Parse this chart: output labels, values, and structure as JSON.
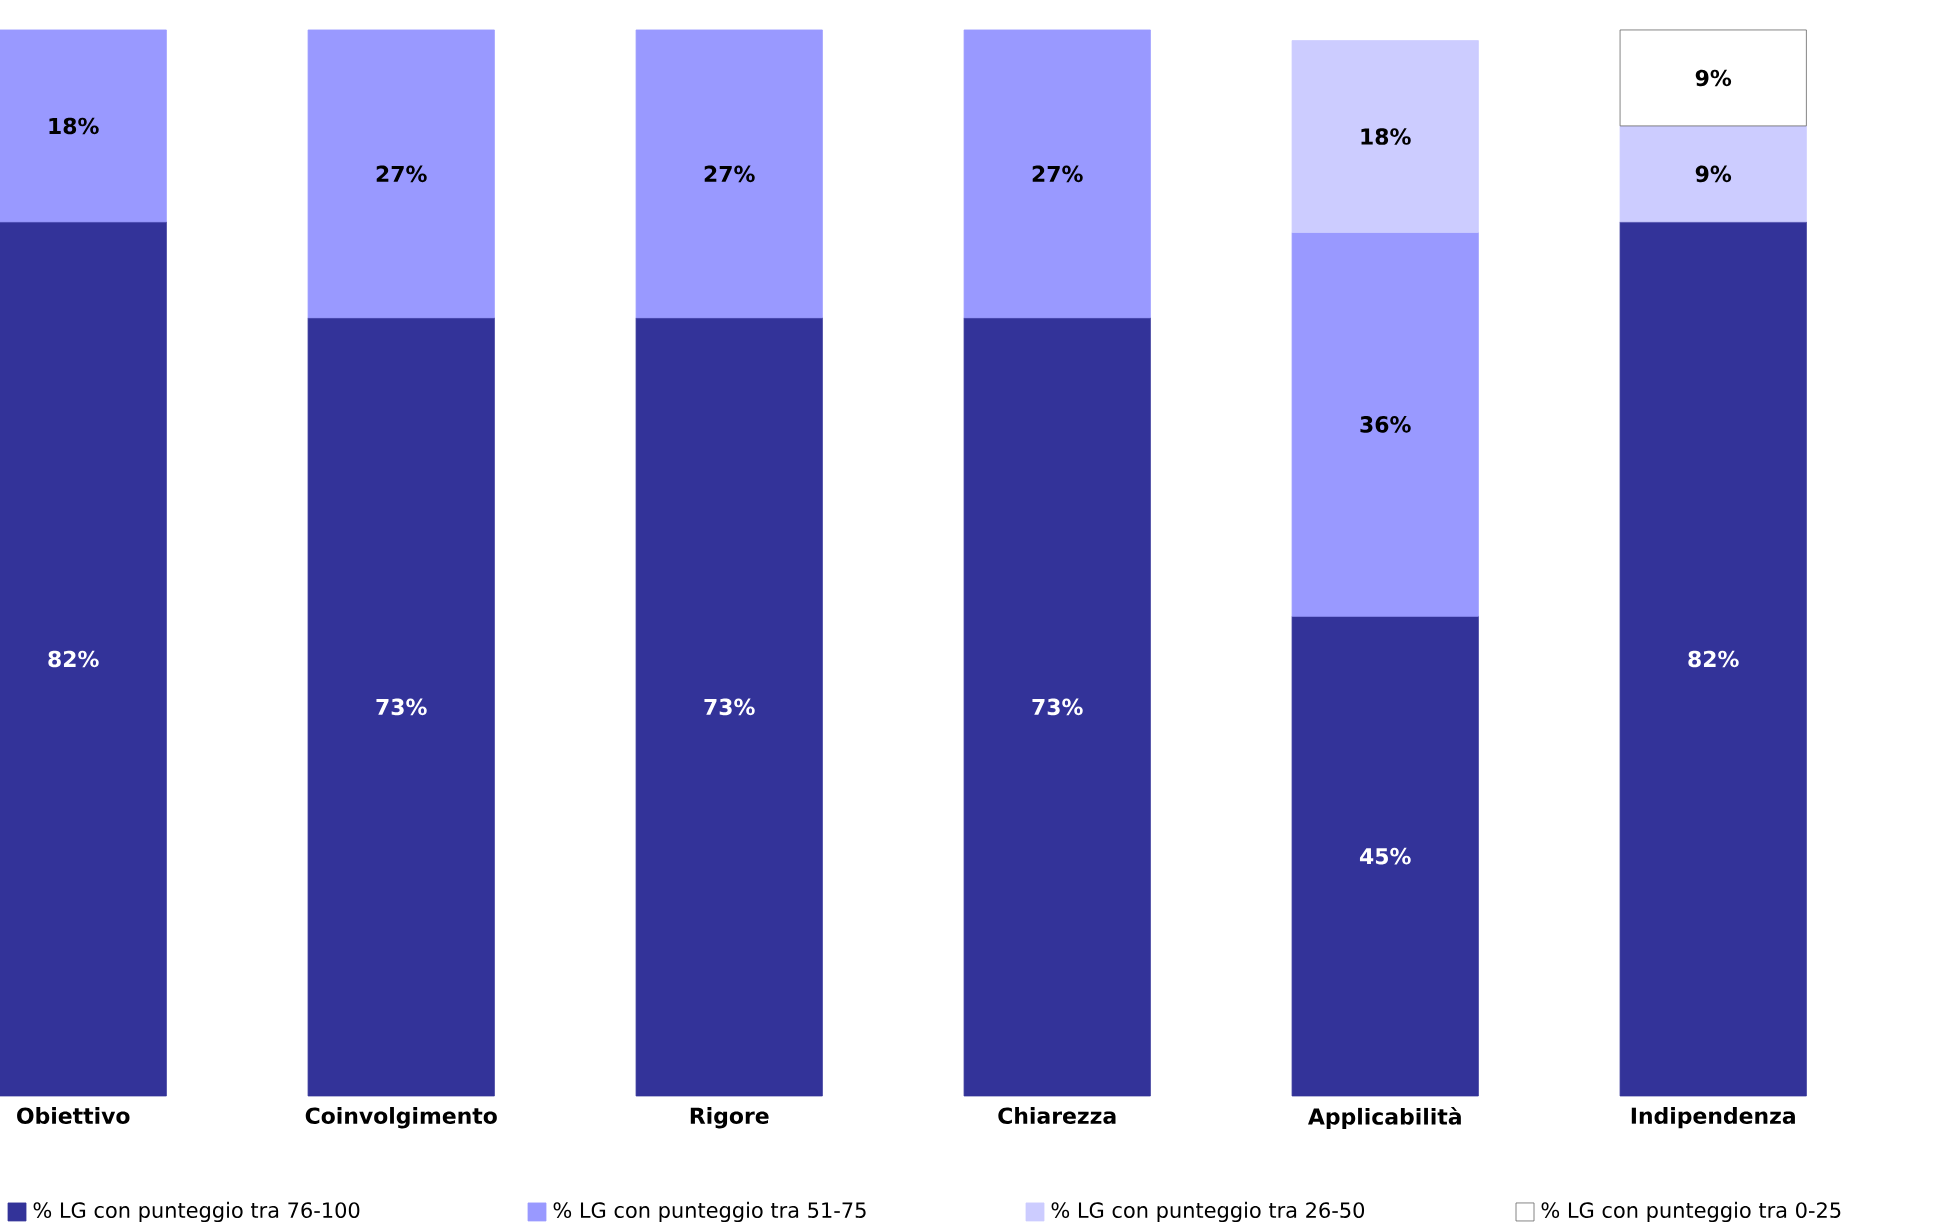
{
  "chart_data": {
    "type": "bar",
    "stacked": true,
    "categories": [
      "Obiettivo",
      "Coinvolgimento",
      "Rigore",
      "Chiarezza",
      "Applicabilità",
      "Indipendenza"
    ],
    "series": [
      {
        "name": "% LG con punteggio tra 76-100",
        "color": "#333399",
        "values": [
          82,
          73,
          73,
          73,
          45,
          82
        ],
        "value_labels": [
          "82%",
          "73%",
          "73%",
          "73%",
          "45%",
          "82%"
        ]
      },
      {
        "name": "% LG con punteggio tra 51-75",
        "color": "#9999ff",
        "values": [
          18,
          27,
          27,
          27,
          36,
          null
        ],
        "value_labels": [
          "18%",
          "27%",
          "27%",
          "27%",
          "36%",
          null
        ]
      },
      {
        "name": "% LG con punteggio tra 26-50",
        "color": "#ccccff",
        "values": [
          null,
          null,
          null,
          null,
          18,
          9
        ],
        "value_labels": [
          null,
          null,
          null,
          null,
          "18%",
          "9%"
        ]
      },
      {
        "name": "% LG con punteggio tra 0-25",
        "color": "#ffffff",
        "values": [
          null,
          null,
          null,
          null,
          null,
          9
        ],
        "value_labels": [
          null,
          null,
          null,
          null,
          null,
          "9%"
        ]
      }
    ],
    "legend": "bottom",
    "grid": false
  }
}
